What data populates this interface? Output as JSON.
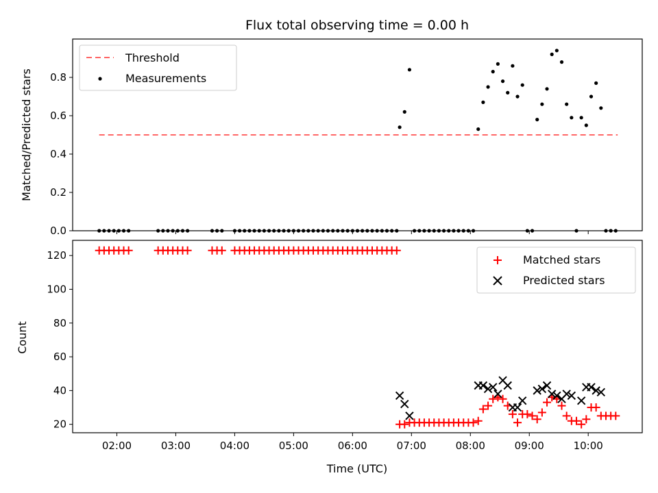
{
  "title": "Flux total observing time = 0.00 h",
  "colors": {
    "threshold": "#ff6666",
    "measurement": "#000000",
    "matched": "#ff0000",
    "predicted": "#000000"
  },
  "chart_data": [
    {
      "type": "scatter",
      "panel": "top",
      "ylabel": "Matched/Predicted stars",
      "ylim": [
        0,
        1.0
      ],
      "yticks": [
        0.0,
        0.2,
        0.4,
        0.6,
        0.8
      ],
      "yticklabels": [
        "0.0",
        "0.2",
        "0.4",
        "0.6",
        "0.8"
      ],
      "xlim": [
        "01:15",
        "10:55"
      ],
      "legend": {
        "placement": "top-left",
        "entries": [
          "Threshold",
          "Measurements"
        ]
      },
      "threshold": {
        "name": "Threshold",
        "value": 0.5,
        "x": [
          "01:42",
          "10:30"
        ],
        "style": "dashed"
      },
      "series": [
        {
          "name": "Measurements",
          "x": [
            "01:42",
            "01:47",
            "01:52",
            "01:57",
            "02:02",
            "02:07",
            "02:12",
            "02:42",
            "02:47",
            "02:52",
            "02:57",
            "03:02",
            "03:07",
            "03:12",
            "03:37",
            "03:42",
            "03:47",
            "04:00",
            "04:05",
            "04:10",
            "04:15",
            "04:20",
            "04:25",
            "04:30",
            "04:35",
            "04:40",
            "04:45",
            "04:50",
            "04:55",
            "05:00",
            "05:05",
            "05:10",
            "05:15",
            "05:20",
            "05:25",
            "05:30",
            "05:35",
            "05:40",
            "05:45",
            "05:50",
            "05:55",
            "06:00",
            "06:05",
            "06:10",
            "06:15",
            "06:20",
            "06:25",
            "06:30",
            "06:35",
            "06:40",
            "06:45",
            "06:48",
            "06:53",
            "06:58",
            "07:03",
            "07:08",
            "07:13",
            "07:18",
            "07:23",
            "07:28",
            "07:33",
            "07:38",
            "07:43",
            "07:48",
            "07:53",
            "07:58",
            "08:03",
            "08:08",
            "08:13",
            "08:18",
            "08:23",
            "08:28",
            "08:33",
            "08:38",
            "08:43",
            "08:48",
            "08:53",
            "08:58",
            "09:03",
            "09:08",
            "09:13",
            "09:18",
            "09:23",
            "09:28",
            "09:33",
            "09:38",
            "09:43",
            "09:48",
            "09:53",
            "09:58",
            "10:03",
            "10:08",
            "10:13",
            "10:18",
            "10:23",
            "10:28"
          ],
          "values": [
            0,
            0,
            0,
            0,
            0,
            0,
            0,
            0,
            0,
            0,
            0,
            0,
            0,
            0,
            0,
            0,
            0,
            0,
            0,
            0,
            0,
            0,
            0,
            0,
            0,
            0,
            0,
            0,
            0,
            0,
            0,
            0,
            0,
            0,
            0,
            0,
            0,
            0,
            0,
            0,
            0,
            0,
            0,
            0,
            0,
            0,
            0,
            0,
            0,
            0,
            0,
            0.54,
            0.62,
            0.84,
            0,
            0,
            0,
            0,
            0,
            0,
            0,
            0,
            0,
            0,
            0,
            0,
            0,
            0.53,
            0.67,
            0.75,
            0.83,
            0.87,
            0.78,
            0.72,
            0.86,
            0.7,
            0.76,
            0,
            0,
            0.58,
            0.66,
            0.74,
            0.92,
            0.94,
            0.88,
            0.66,
            0.59,
            0,
            0.59,
            0.55,
            0.7,
            0.77,
            0.64,
            0,
            0,
            0
          ]
        }
      ]
    },
    {
      "type": "scatter",
      "panel": "bottom",
      "xlabel": "Time (UTC)",
      "ylabel": "Count",
      "ylim": [
        15,
        129
      ],
      "yticks": [
        20,
        40,
        60,
        80,
        100,
        120
      ],
      "yticklabels": [
        "20",
        "40",
        "60",
        "80",
        "100",
        "120"
      ],
      "xlim": [
        "01:15",
        "10:55"
      ],
      "xticks": [
        "02:00",
        "03:00",
        "04:00",
        "05:00",
        "06:00",
        "07:00",
        "08:00",
        "09:00",
        "10:00"
      ],
      "xticklabels": [
        "02:00",
        "03:00",
        "04:00",
        "05:00",
        "06:00",
        "07:00",
        "08:00",
        "09:00",
        "10:00"
      ],
      "legend": {
        "placement": "top-right",
        "entries": [
          "Matched stars",
          "Predicted stars"
        ]
      },
      "series": [
        {
          "name": "Matched stars",
          "marker": "plus",
          "x": [
            "01:42",
            "01:47",
            "01:52",
            "01:57",
            "02:02",
            "02:07",
            "02:12",
            "02:42",
            "02:47",
            "02:52",
            "02:57",
            "03:02",
            "03:07",
            "03:12",
            "03:37",
            "03:42",
            "03:47",
            "04:00",
            "04:05",
            "04:10",
            "04:15",
            "04:20",
            "04:25",
            "04:30",
            "04:35",
            "04:40",
            "04:45",
            "04:50",
            "04:55",
            "05:00",
            "05:05",
            "05:10",
            "05:15",
            "05:20",
            "05:25",
            "05:30",
            "05:35",
            "05:40",
            "05:45",
            "05:50",
            "05:55",
            "06:00",
            "06:05",
            "06:10",
            "06:15",
            "06:20",
            "06:25",
            "06:30",
            "06:35",
            "06:40",
            "06:45",
            "06:48",
            "06:53",
            "06:58",
            "07:03",
            "07:08",
            "07:13",
            "07:18",
            "07:23",
            "07:28",
            "07:33",
            "07:38",
            "07:43",
            "07:48",
            "07:53",
            "07:58",
            "08:03",
            "08:08",
            "08:13",
            "08:18",
            "08:23",
            "08:28",
            "08:33",
            "08:38",
            "08:43",
            "08:48",
            "08:53",
            "08:58",
            "09:03",
            "09:08",
            "09:13",
            "09:18",
            "09:23",
            "09:28",
            "09:33",
            "09:38",
            "09:43",
            "09:48",
            "09:53",
            "09:58",
            "10:03",
            "10:08",
            "10:13",
            "10:18",
            "10:23",
            "10:28"
          ],
          "values": [
            123,
            123,
            123,
            123,
            123,
            123,
            123,
            123,
            123,
            123,
            123,
            123,
            123,
            123,
            123,
            123,
            123,
            123,
            123,
            123,
            123,
            123,
            123,
            123,
            123,
            123,
            123,
            123,
            123,
            123,
            123,
            123,
            123,
            123,
            123,
            123,
            123,
            123,
            123,
            123,
            123,
            123,
            123,
            123,
            123,
            123,
            123,
            123,
            123,
            123,
            123,
            20,
            20,
            21,
            21,
            21,
            21,
            21,
            21,
            21,
            21,
            21,
            21,
            21,
            21,
            21,
            21,
            22,
            29,
            31,
            35,
            36,
            35,
            31,
            26,
            21,
            26,
            26,
            25,
            23,
            27,
            33,
            36,
            35,
            31,
            25,
            22,
            22,
            20,
            23,
            30,
            30,
            25,
            25,
            25,
            25
          ]
        },
        {
          "name": "Predicted stars",
          "marker": "cross",
          "x": [
            "06:48",
            "06:53",
            "06:58",
            "08:08",
            "08:13",
            "08:18",
            "08:23",
            "08:28",
            "08:33",
            "08:38",
            "08:43",
            "08:48",
            "08:53",
            "09:08",
            "09:13",
            "09:18",
            "09:23",
            "09:28",
            "09:33",
            "09:38",
            "09:43",
            "09:53",
            "09:58",
            "10:03",
            "10:08",
            "10:13"
          ],
          "values": [
            37,
            32,
            25,
            43,
            43,
            41,
            42,
            38,
            46,
            43,
            30,
            30,
            34,
            40,
            41,
            43,
            38,
            37,
            35,
            38,
            37,
            34,
            42,
            42,
            40,
            39
          ]
        }
      ]
    }
  ]
}
